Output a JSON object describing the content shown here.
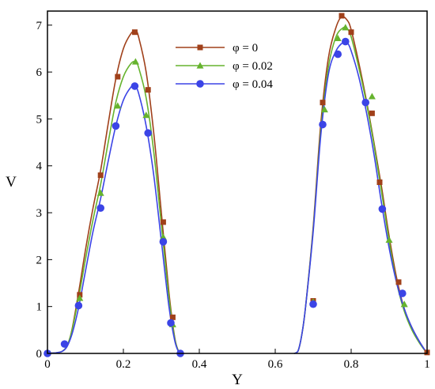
{
  "chart_data": {
    "type": "line",
    "title": "",
    "xlabel": "Y",
    "ylabel": "V",
    "xlim": [
      0,
      1
    ],
    "ylim": [
      0,
      7.3
    ],
    "xticks": [
      0,
      0.2,
      0.4,
      0.6,
      0.8,
      1
    ],
    "xtick_labels": [
      "0",
      "0.2",
      "0.4",
      "0.6",
      "0.8",
      "1"
    ],
    "yticks": [
      0,
      1,
      2,
      3,
      4,
      5,
      6,
      7
    ],
    "ytick_labels": [
      "0",
      "1",
      "2",
      "3",
      "4",
      "5",
      "6",
      "7"
    ],
    "grid": false,
    "legend_position": "top-center",
    "series": [
      {
        "name": "φ = 0",
        "color": "#a0401a",
        "marker": "square",
        "curve": [
          [
            0.0,
            0.0
          ],
          [
            0.04,
            0.05
          ],
          [
            0.06,
            0.35
          ],
          [
            0.08,
            1.2
          ],
          [
            0.1,
            2.2
          ],
          [
            0.12,
            3.1
          ],
          [
            0.14,
            3.9
          ],
          [
            0.16,
            4.9
          ],
          [
            0.18,
            5.85
          ],
          [
            0.2,
            6.5
          ],
          [
            0.22,
            6.82
          ],
          [
            0.232,
            6.87
          ],
          [
            0.24,
            6.75
          ],
          [
            0.26,
            6.0
          ],
          [
            0.28,
            4.7
          ],
          [
            0.3,
            3.0
          ],
          [
            0.32,
            1.3
          ],
          [
            0.335,
            0.35
          ],
          [
            0.345,
            0.05
          ],
          [
            0.35,
            0.0
          ],
          [
            0.65,
            0.0
          ],
          [
            0.66,
            0.05
          ],
          [
            0.67,
            0.4
          ],
          [
            0.68,
            1.0
          ],
          [
            0.7,
            2.7
          ],
          [
            0.72,
            4.9
          ],
          [
            0.74,
            6.3
          ],
          [
            0.76,
            6.95
          ],
          [
            0.775,
            7.18
          ],
          [
            0.79,
            7.1
          ],
          [
            0.8,
            6.9
          ],
          [
            0.82,
            6.2
          ],
          [
            0.84,
            5.4
          ],
          [
            0.86,
            4.5
          ],
          [
            0.88,
            3.55
          ],
          [
            0.9,
            2.5
          ],
          [
            0.92,
            1.6
          ],
          [
            0.94,
            0.95
          ],
          [
            0.96,
            0.55
          ],
          [
            0.98,
            0.25
          ],
          [
            1.0,
            0.0
          ]
        ],
        "markers": [
          [
            0.0,
            0.0
          ],
          [
            0.085,
            1.25
          ],
          [
            0.14,
            3.8
          ],
          [
            0.185,
            5.9
          ],
          [
            0.23,
            6.85
          ],
          [
            0.265,
            5.62
          ],
          [
            0.305,
            2.8
          ],
          [
            0.33,
            0.77
          ],
          [
            0.7,
            1.12
          ],
          [
            0.725,
            5.35
          ],
          [
            0.775,
            7.2
          ],
          [
            0.8,
            6.85
          ],
          [
            0.855,
            5.12
          ],
          [
            0.875,
            3.65
          ],
          [
            0.925,
            1.52
          ],
          [
            1.0,
            0.02
          ]
        ]
      },
      {
        "name": "φ = 0.02",
        "color": "#66b32e",
        "marker": "triangle",
        "curve": [
          [
            0.0,
            0.0
          ],
          [
            0.04,
            0.05
          ],
          [
            0.06,
            0.35
          ],
          [
            0.08,
            1.1
          ],
          [
            0.1,
            2.0
          ],
          [
            0.12,
            2.85
          ],
          [
            0.14,
            3.6
          ],
          [
            0.16,
            4.5
          ],
          [
            0.18,
            5.35
          ],
          [
            0.2,
            5.9
          ],
          [
            0.22,
            6.18
          ],
          [
            0.232,
            6.22
          ],
          [
            0.24,
            6.1
          ],
          [
            0.26,
            5.45
          ],
          [
            0.28,
            4.3
          ],
          [
            0.3,
            2.75
          ],
          [
            0.32,
            1.2
          ],
          [
            0.335,
            0.33
          ],
          [
            0.345,
            0.05
          ],
          [
            0.35,
            0.0
          ],
          [
            0.65,
            0.0
          ],
          [
            0.66,
            0.05
          ],
          [
            0.67,
            0.4
          ],
          [
            0.68,
            1.0
          ],
          [
            0.7,
            2.65
          ],
          [
            0.72,
            4.75
          ],
          [
            0.74,
            6.1
          ],
          [
            0.76,
            6.75
          ],
          [
            0.78,
            6.95
          ],
          [
            0.79,
            6.92
          ],
          [
            0.8,
            6.75
          ],
          [
            0.82,
            6.1
          ],
          [
            0.84,
            5.35
          ],
          [
            0.86,
            4.45
          ],
          [
            0.88,
            3.45
          ],
          [
            0.9,
            2.4
          ],
          [
            0.92,
            1.5
          ],
          [
            0.94,
            0.9
          ],
          [
            0.96,
            0.5
          ],
          [
            0.98,
            0.22
          ],
          [
            1.0,
            0.0
          ]
        ],
        "markers": [
          [
            0.085,
            1.18
          ],
          [
            0.14,
            3.42
          ],
          [
            0.185,
            5.28
          ],
          [
            0.232,
            6.22
          ],
          [
            0.26,
            5.08
          ],
          [
            0.305,
            2.48
          ],
          [
            0.33,
            0.62
          ],
          [
            0.7,
            1.1
          ],
          [
            0.73,
            5.2
          ],
          [
            0.765,
            6.72
          ],
          [
            0.785,
            6.95
          ],
          [
            0.855,
            5.48
          ],
          [
            0.9,
            2.42
          ],
          [
            0.94,
            1.05
          ]
        ]
      },
      {
        "name": "φ = 0.04",
        "color": "#3b44e6",
        "marker": "circle",
        "curve": [
          [
            0.0,
            0.0
          ],
          [
            0.04,
            0.05
          ],
          [
            0.06,
            0.3
          ],
          [
            0.08,
            0.9
          ],
          [
            0.1,
            1.75
          ],
          [
            0.12,
            2.6
          ],
          [
            0.14,
            3.3
          ],
          [
            0.16,
            4.1
          ],
          [
            0.18,
            4.85
          ],
          [
            0.2,
            5.4
          ],
          [
            0.22,
            5.68
          ],
          [
            0.23,
            5.7
          ],
          [
            0.24,
            5.55
          ],
          [
            0.26,
            4.85
          ],
          [
            0.28,
            3.8
          ],
          [
            0.3,
            2.4
          ],
          [
            0.32,
            1.0
          ],
          [
            0.335,
            0.28
          ],
          [
            0.345,
            0.04
          ],
          [
            0.35,
            0.0
          ],
          [
            0.65,
            0.0
          ],
          [
            0.66,
            0.05
          ],
          [
            0.67,
            0.4
          ],
          [
            0.68,
            1.0
          ],
          [
            0.7,
            2.6
          ],
          [
            0.72,
            4.65
          ],
          [
            0.74,
            5.95
          ],
          [
            0.76,
            6.45
          ],
          [
            0.78,
            6.64
          ],
          [
            0.79,
            6.62
          ],
          [
            0.8,
            6.45
          ],
          [
            0.82,
            5.9
          ],
          [
            0.84,
            5.15
          ],
          [
            0.86,
            4.25
          ],
          [
            0.88,
            3.2
          ],
          [
            0.9,
            2.25
          ],
          [
            0.92,
            1.5
          ],
          [
            0.94,
            0.95
          ],
          [
            0.96,
            0.55
          ],
          [
            0.98,
            0.25
          ],
          [
            1.0,
            0.0
          ]
        ],
        "markers": [
          [
            0.0,
            0.0
          ],
          [
            0.045,
            0.2
          ],
          [
            0.082,
            1.02
          ],
          [
            0.14,
            3.1
          ],
          [
            0.18,
            4.85
          ],
          [
            0.23,
            5.7
          ],
          [
            0.265,
            4.7
          ],
          [
            0.305,
            2.38
          ],
          [
            0.325,
            0.65
          ],
          [
            0.35,
            0.0
          ],
          [
            0.7,
            1.05
          ],
          [
            0.725,
            4.88
          ],
          [
            0.765,
            6.38
          ],
          [
            0.785,
            6.65
          ],
          [
            0.838,
            5.35
          ],
          [
            0.882,
            3.08
          ],
          [
            0.935,
            1.28
          ]
        ]
      }
    ]
  }
}
